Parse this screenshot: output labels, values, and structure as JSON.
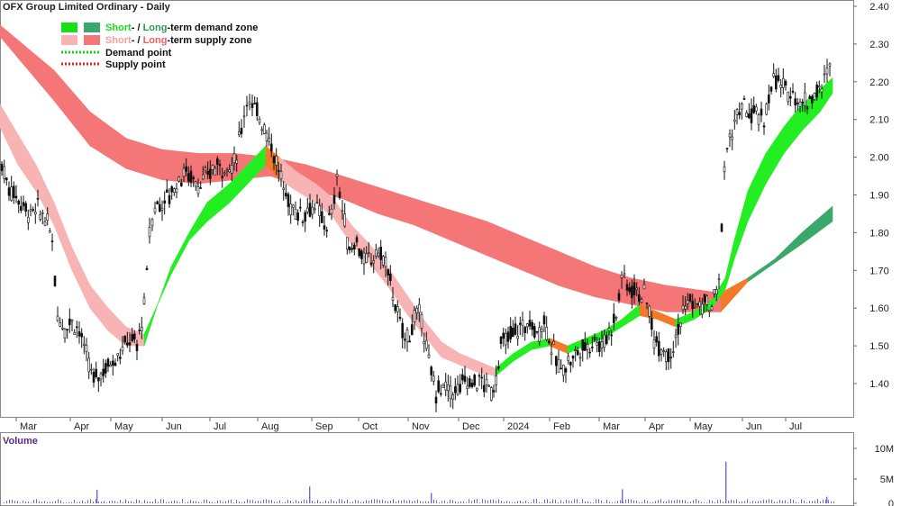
{
  "chart_data": {
    "type": "candlestick",
    "title": "OFX Group Limited Ordinary - Daily",
    "price_axis": {
      "ticks": [
        "2.40",
        "2.30",
        "2.20",
        "2.10",
        "2.00",
        "1.90",
        "1.80",
        "1.70",
        "1.60",
        "1.50",
        "1.40"
      ],
      "ylim": [
        1.32,
        2.41
      ]
    },
    "volume_axis": {
      "label": "Volume",
      "ticks": [
        "10M",
        "5M",
        "0"
      ],
      "ylim": [
        0,
        12
      ]
    },
    "x_labels": [
      "Mar",
      "Apr",
      "May",
      "Jun",
      "Jul",
      "Aug",
      "Sep",
      "Oct",
      "Nov",
      "Dec",
      "2024",
      "Feb",
      "Mar",
      "Apr",
      "May",
      "Jun",
      "Jul"
    ],
    "legend": [
      {
        "prefix": "Short",
        "sep": "- / ",
        "middle": "Long",
        "suffix": "-term demand zone",
        "prefix_color": "#18e018",
        "middle_color": "#2a9a55",
        "swatches": [
          "#18e018",
          "#3aa86a"
        ]
      },
      {
        "prefix": "Short",
        "sep": "- / ",
        "middle": "Long",
        "suffix": "-term supply zone",
        "prefix_color": "#f5a0a0",
        "middle_color": "#f06060",
        "swatches": [
          "#f8b4b4",
          "#f47676"
        ]
      },
      {
        "text": "Demand point",
        "line_color": "#18d018"
      },
      {
        "text": "Supply point",
        "line_color": "#e02020"
      }
    ],
    "long_term_zone": [
      {
        "x": 0,
        "top": 2.35,
        "bot": 2.32
      },
      {
        "x": 60,
        "top": 2.23,
        "bot": 2.15
      },
      {
        "x": 100,
        "top": 2.12,
        "bot": 2.03
      },
      {
        "x": 140,
        "top": 2.05,
        "bot": 1.97
      },
      {
        "x": 180,
        "top": 2.02,
        "bot": 1.94
      },
      {
        "x": 220,
        "top": 2.01,
        "bot": 1.93
      },
      {
        "x": 260,
        "top": 2.01,
        "bot": 1.94
      },
      {
        "x": 300,
        "top": 2.0,
        "bot": 1.95
      },
      {
        "x": 340,
        "top": 1.98,
        "bot": 1.92
      },
      {
        "x": 380,
        "top": 1.95,
        "bot": 1.89
      },
      {
        "x": 420,
        "top": 1.92,
        "bot": 1.85
      },
      {
        "x": 460,
        "top": 1.89,
        "bot": 1.82
      },
      {
        "x": 500,
        "top": 1.86,
        "bot": 1.78
      },
      {
        "x": 540,
        "top": 1.83,
        "bot": 1.74
      },
      {
        "x": 580,
        "top": 1.79,
        "bot": 1.7
      },
      {
        "x": 620,
        "top": 1.75,
        "bot": 1.66
      },
      {
        "x": 660,
        "top": 1.71,
        "bot": 1.63
      },
      {
        "x": 700,
        "top": 1.68,
        "bot": 1.61
      },
      {
        "x": 740,
        "top": 1.66,
        "bot": 1.59
      },
      {
        "x": 770,
        "top": 1.65,
        "bot": 1.59
      },
      {
        "x": 800,
        "top": 1.64,
        "bot": 1.59
      },
      {
        "x": 830,
        "top": 1.68,
        "bot": 1.67
      },
      {
        "x": 860,
        "top": 1.73,
        "bot": 1.72
      },
      {
        "x": 890,
        "top": 1.8,
        "bot": 1.77
      },
      {
        "x": 924,
        "top": 1.87,
        "bot": 1.83
      }
    ],
    "short_term_zone": [
      {
        "x": 0,
        "top": 2.14,
        "bot": 2.08
      },
      {
        "x": 20,
        "top": 2.06,
        "bot": 1.98
      },
      {
        "x": 40,
        "top": 1.98,
        "bot": 1.91
      },
      {
        "x": 60,
        "top": 1.88,
        "bot": 1.82
      },
      {
        "x": 80,
        "top": 1.76,
        "bot": 1.7
      },
      {
        "x": 100,
        "top": 1.66,
        "bot": 1.6
      },
      {
        "x": 120,
        "top": 1.6,
        "bot": 1.54
      },
      {
        "x": 140,
        "top": 1.55,
        "bot": 1.5
      },
      {
        "x": 160,
        "top": 1.53,
        "bot": 1.5
      },
      {
        "x": 175,
        "top": 1.61,
        "bot": 1.61
      },
      {
        "x": 190,
        "top": 1.71,
        "bot": 1.69
      },
      {
        "x": 210,
        "top": 1.8,
        "bot": 1.78
      },
      {
        "x": 230,
        "top": 1.88,
        "bot": 1.83
      },
      {
        "x": 255,
        "top": 1.93,
        "bot": 1.88
      },
      {
        "x": 275,
        "top": 1.98,
        "bot": 1.93
      },
      {
        "x": 295,
        "top": 2.03,
        "bot": 1.98
      },
      {
        "x": 310,
        "top": 2.0,
        "bot": 1.94
      },
      {
        "x": 330,
        "top": 1.96,
        "bot": 1.91
      },
      {
        "x": 350,
        "top": 1.93,
        "bot": 1.88
      },
      {
        "x": 370,
        "top": 1.89,
        "bot": 1.84
      },
      {
        "x": 390,
        "top": 1.82,
        "bot": 1.77
      },
      {
        "x": 410,
        "top": 1.77,
        "bot": 1.72
      },
      {
        "x": 430,
        "top": 1.71,
        "bot": 1.66
      },
      {
        "x": 450,
        "top": 1.64,
        "bot": 1.59
      },
      {
        "x": 470,
        "top": 1.57,
        "bot": 1.53
      },
      {
        "x": 490,
        "top": 1.51,
        "bot": 1.47
      },
      {
        "x": 510,
        "top": 1.48,
        "bot": 1.45
      },
      {
        "x": 530,
        "top": 1.46,
        "bot": 1.43
      },
      {
        "x": 550,
        "top": 1.44,
        "bot": 1.42
      },
      {
        "x": 570,
        "top": 1.48,
        "bot": 1.46
      },
      {
        "x": 590,
        "top": 1.51,
        "bot": 1.49
      },
      {
        "x": 610,
        "top": 1.52,
        "bot": 1.5
      },
      {
        "x": 630,
        "top": 1.5,
        "bot": 1.48
      },
      {
        "x": 650,
        "top": 1.52,
        "bot": 1.5
      },
      {
        "x": 670,
        "top": 1.54,
        "bot": 1.52
      },
      {
        "x": 690,
        "top": 1.57,
        "bot": 1.55
      },
      {
        "x": 710,
        "top": 1.61,
        "bot": 1.58
      },
      {
        "x": 730,
        "top": 1.59,
        "bot": 1.57
      },
      {
        "x": 750,
        "top": 1.57,
        "bot": 1.55
      },
      {
        "x": 770,
        "top": 1.59,
        "bot": 1.57
      },
      {
        "x": 790,
        "top": 1.62,
        "bot": 1.6
      },
      {
        "x": 805,
        "top": 1.68,
        "bot": 1.65
      },
      {
        "x": 815,
        "top": 1.78,
        "bot": 1.73
      },
      {
        "x": 830,
        "top": 1.91,
        "bot": 1.83
      },
      {
        "x": 850,
        "top": 2.01,
        "bot": 1.93
      },
      {
        "x": 870,
        "top": 2.08,
        "bot": 2.01
      },
      {
        "x": 890,
        "top": 2.14,
        "bot": 2.07
      },
      {
        "x": 910,
        "top": 2.18,
        "bot": 2.12
      },
      {
        "x": 924,
        "top": 2.21,
        "bot": 2.17
      }
    ],
    "price_path": [
      [
        2,
        1.98
      ],
      [
        10,
        1.92
      ],
      [
        18,
        1.9
      ],
      [
        26,
        1.87
      ],
      [
        34,
        1.85
      ],
      [
        42,
        1.86
      ],
      [
        50,
        1.84
      ],
      [
        58,
        1.78
      ],
      [
        64,
        1.58
      ],
      [
        72,
        1.55
      ],
      [
        80,
        1.57
      ],
      [
        88,
        1.54
      ],
      [
        96,
        1.47
      ],
      [
        104,
        1.41
      ],
      [
        112,
        1.43
      ],
      [
        120,
        1.45
      ],
      [
        128,
        1.47
      ],
      [
        136,
        1.49
      ],
      [
        144,
        1.52
      ],
      [
        152,
        1.5
      ],
      [
        160,
        1.6
      ],
      [
        166,
        1.8
      ],
      [
        172,
        1.87
      ],
      [
        180,
        1.88
      ],
      [
        188,
        1.9
      ],
      [
        196,
        1.93
      ],
      [
        204,
        1.96
      ],
      [
        212,
        1.95
      ],
      [
        220,
        1.93
      ],
      [
        228,
        1.94
      ],
      [
        236,
        1.97
      ],
      [
        244,
        1.98
      ],
      [
        252,
        1.97
      ],
      [
        260,
        1.98
      ],
      [
        268,
        2.08
      ],
      [
        274,
        2.16
      ],
      [
        280,
        2.13
      ],
      [
        288,
        2.11
      ],
      [
        296,
        2.07
      ],
      [
        304,
        2.01
      ],
      [
        312,
        1.94
      ],
      [
        320,
        1.88
      ],
      [
        328,
        1.86
      ],
      [
        336,
        1.85
      ],
      [
        344,
        1.87
      ],
      [
        352,
        1.86
      ],
      [
        360,
        1.82
      ],
      [
        368,
        1.84
      ],
      [
        374,
        1.95
      ],
      [
        380,
        1.86
      ],
      [
        388,
        1.75
      ],
      [
        396,
        1.78
      ],
      [
        404,
        1.72
      ],
      [
        412,
        1.73
      ],
      [
        420,
        1.75
      ],
      [
        428,
        1.72
      ],
      [
        436,
        1.64
      ],
      [
        444,
        1.55
      ],
      [
        452,
        1.52
      ],
      [
        460,
        1.57
      ],
      [
        468,
        1.58
      ],
      [
        476,
        1.45
      ],
      [
        484,
        1.38
      ],
      [
        492,
        1.39
      ],
      [
        500,
        1.38
      ],
      [
        508,
        1.38
      ],
      [
        516,
        1.41
      ],
      [
        524,
        1.4
      ],
      [
        532,
        1.41
      ],
      [
        540,
        1.39
      ],
      [
        548,
        1.38
      ],
      [
        556,
        1.5
      ],
      [
        564,
        1.52
      ],
      [
        572,
        1.54
      ],
      [
        580,
        1.55
      ],
      [
        588,
        1.56
      ],
      [
        596,
        1.53
      ],
      [
        604,
        1.57
      ],
      [
        612,
        1.5
      ],
      [
        620,
        1.44
      ],
      [
        628,
        1.45
      ],
      [
        636,
        1.47
      ],
      [
        644,
        1.49
      ],
      [
        652,
        1.5
      ],
      [
        660,
        1.52
      ],
      [
        668,
        1.5
      ],
      [
        676,
        1.54
      ],
      [
        684,
        1.58
      ],
      [
        690,
        1.69
      ],
      [
        696,
        1.66
      ],
      [
        704,
        1.65
      ],
      [
        712,
        1.64
      ],
      [
        718,
        1.62
      ],
      [
        726,
        1.52
      ],
      [
        734,
        1.5
      ],
      [
        742,
        1.48
      ],
      [
        750,
        1.52
      ],
      [
        758,
        1.59
      ],
      [
        766,
        1.62
      ],
      [
        774,
        1.6
      ],
      [
        782,
        1.61
      ],
      [
        790,
        1.6
      ],
      [
        798,
        1.67
      ],
      [
        804,
        1.97
      ],
      [
        810,
        2.05
      ],
      [
        818,
        2.11
      ],
      [
        826,
        2.13
      ],
      [
        834,
        2.11
      ],
      [
        842,
        2.11
      ],
      [
        848,
        2.09
      ],
      [
        856,
        2.2
      ],
      [
        864,
        2.2
      ],
      [
        872,
        2.17
      ],
      [
        880,
        2.18
      ],
      [
        888,
        2.14
      ],
      [
        896,
        2.15
      ],
      [
        904,
        2.17
      ],
      [
        912,
        2.18
      ],
      [
        918,
        2.22
      ],
      [
        924,
        2.3
      ]
    ],
    "volume_spikes": [
      {
        "x": 107,
        "v": 2.9
      },
      {
        "x": 343,
        "v": 3.6
      },
      {
        "x": 478,
        "v": 2.2
      },
      {
        "x": 690,
        "v": 3.0
      },
      {
        "x": 805,
        "v": 8.9
      },
      {
        "x": 917,
        "v": 1.4
      }
    ]
  }
}
